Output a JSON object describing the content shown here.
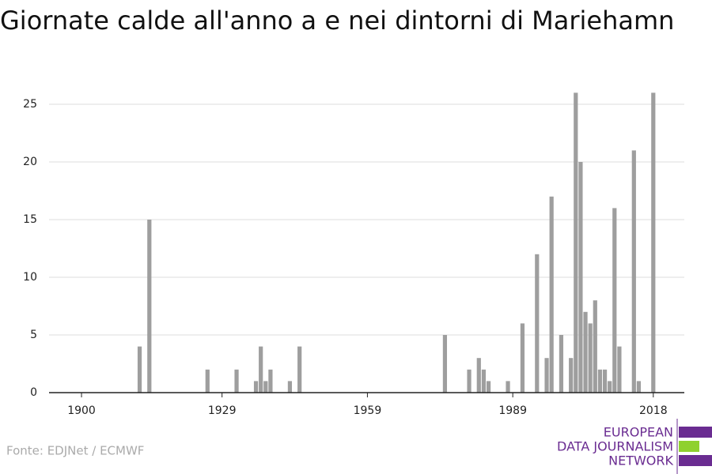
{
  "chart_data": {
    "type": "bar",
    "title": "Giornate calde all'anno a e nei dintorni di Mariehamn",
    "source": "Fonte: EDJNet / ECMWF",
    "logo": [
      "EUROPEAN",
      "DATA JOURNALISM",
      "NETWORK"
    ],
    "color": "#9e9e9e",
    "x": [
      1912,
      1914,
      1926,
      1932,
      1936,
      1937,
      1938,
      1939,
      1943,
      1945,
      1975,
      1980,
      1982,
      1983,
      1984,
      1988,
      1991,
      1994,
      1996,
      1997,
      1999,
      2001,
      2002,
      2003,
      2004,
      2005,
      2006,
      2007,
      2008,
      2009,
      2010,
      2011,
      2014,
      2015,
      2018
    ],
    "values": [
      4,
      15,
      2,
      2,
      1,
      4,
      1,
      2,
      1,
      4,
      5,
      2,
      3,
      2,
      1,
      1,
      6,
      12,
      3,
      17,
      5,
      3,
      26,
      20,
      7,
      6,
      8,
      2,
      2,
      1,
      16,
      4,
      21,
      1,
      26
    ],
    "xlim": [
      1893.3,
      2024.4
    ],
    "xticks": [
      1900,
      1929,
      1959,
      1989,
      2018
    ],
    "ylim": [
      0,
      27
    ],
    "yticks": [
      0,
      5,
      10,
      15,
      20,
      25
    ],
    "grid": true
  }
}
